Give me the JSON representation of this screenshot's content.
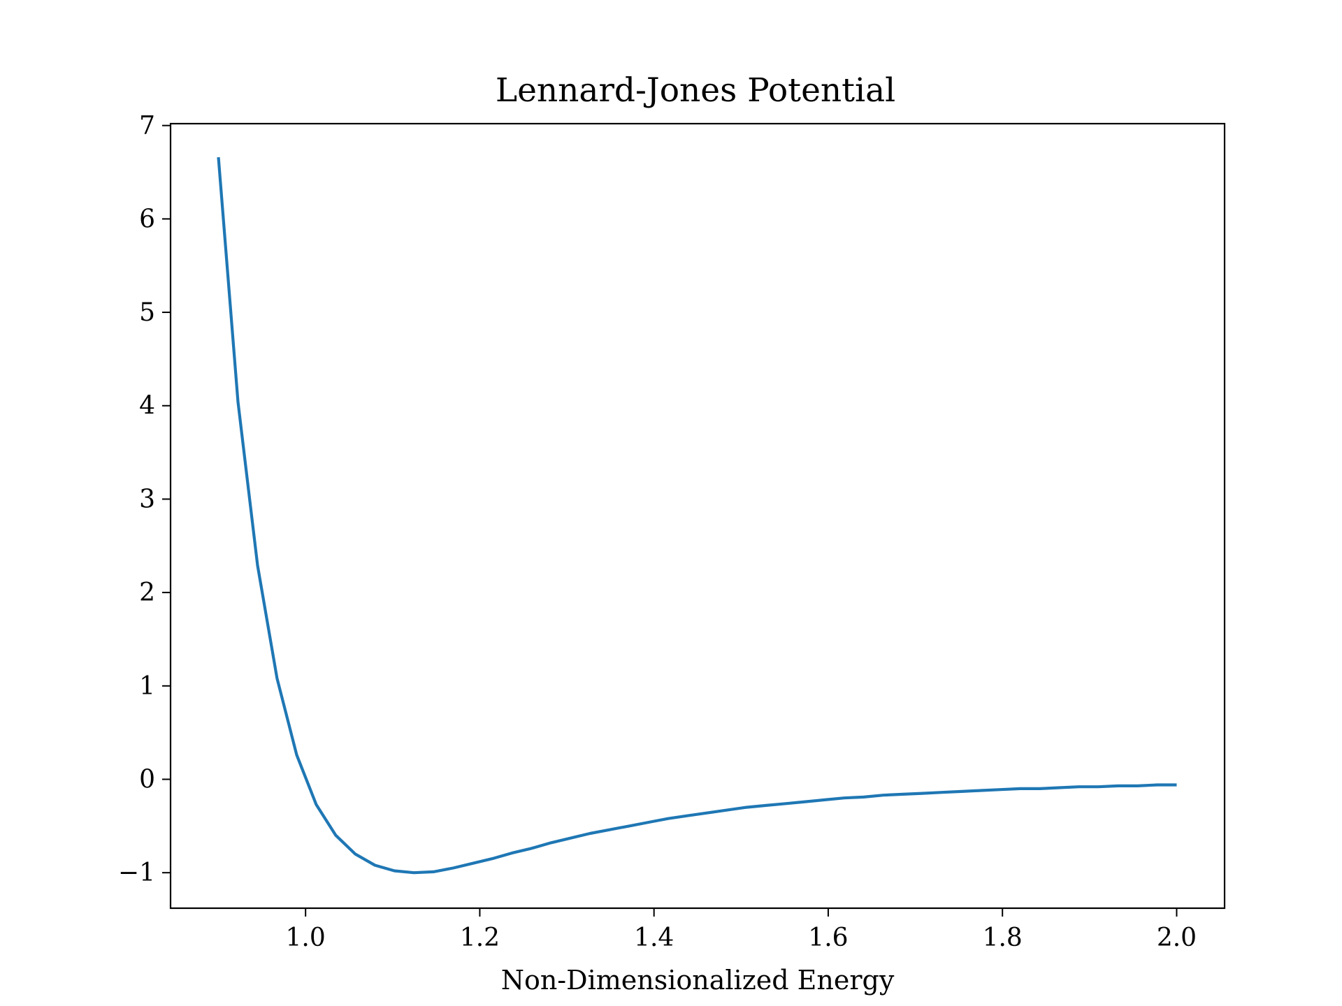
{
  "chart_data": {
    "type": "line",
    "title": "Lennard-Jones Potential",
    "xlabel": "Non-Dimensionalized Energy",
    "ylabel": "",
    "xlim": [
      0.845,
      2.055
    ],
    "ylim": [
      -1.38,
      7.02
    ],
    "xticks": [
      1.0,
      1.2,
      1.4,
      1.6,
      1.8,
      2.0
    ],
    "xtick_labels": [
      "1.0",
      "1.2",
      "1.4",
      "1.6",
      "1.8",
      "2.0"
    ],
    "yticks": [
      -1,
      0,
      1,
      2,
      3,
      4,
      5,
      6,
      7
    ],
    "ytick_labels": [
      "−1",
      "0",
      "1",
      "2",
      "3",
      "4",
      "5",
      "6",
      "7"
    ],
    "grid": false,
    "series": [
      {
        "color": "#1f77b4",
        "x": [
          0.9,
          0.9224,
          0.9449,
          0.9673,
          0.9898,
          1.0122,
          1.0347,
          1.0571,
          1.0796,
          1.102,
          1.1245,
          1.1469,
          1.1694,
          1.1918,
          1.2143,
          1.2367,
          1.2592,
          1.2816,
          1.3041,
          1.3265,
          1.349,
          1.3714,
          1.3939,
          1.4163,
          1.4388,
          1.4612,
          1.4837,
          1.5061,
          1.5286,
          1.551,
          1.5735,
          1.5959,
          1.6184,
          1.6408,
          1.6633,
          1.6857,
          1.7082,
          1.7306,
          1.7531,
          1.7755,
          1.798,
          1.8204,
          1.8429,
          1.8653,
          1.8878,
          1.9102,
          1.9327,
          1.9551,
          1.9776,
          2.0
        ],
        "y": [
          6.66,
          4.04,
          2.29,
          1.08,
          0.26,
          -0.27,
          -0.6,
          -0.8,
          -0.92,
          -0.98,
          -1.0,
          -0.99,
          -0.95,
          -0.9,
          -0.85,
          -0.79,
          -0.74,
          -0.68,
          -0.63,
          -0.58,
          -0.54,
          -0.5,
          -0.46,
          -0.42,
          -0.39,
          -0.36,
          -0.33,
          -0.3,
          -0.28,
          -0.26,
          -0.24,
          -0.22,
          -0.2,
          -0.19,
          -0.17,
          -0.16,
          -0.15,
          -0.14,
          -0.13,
          -0.12,
          -0.11,
          -0.1,
          -0.1,
          -0.09,
          -0.08,
          -0.08,
          -0.07,
          -0.07,
          -0.06,
          -0.06
        ]
      }
    ]
  }
}
